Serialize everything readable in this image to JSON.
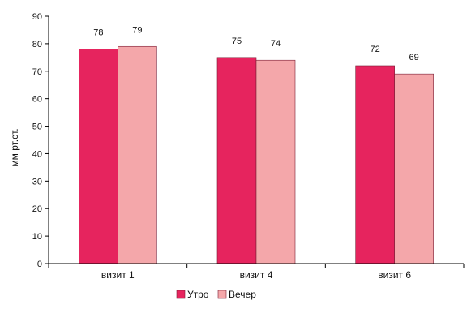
{
  "chart_data": {
    "type": "bar",
    "title": "",
    "xlabel": "",
    "ylabel": "мм рт.ст.",
    "ylim": [
      0,
      90
    ],
    "yticks": [
      0,
      10,
      20,
      30,
      40,
      50,
      60,
      70,
      80,
      90
    ],
    "categories": [
      "визит 1",
      "визит 4",
      "визит 6"
    ],
    "series": [
      {
        "name": "Утро",
        "values": [
          78,
          75,
          72
        ],
        "labels": [
          "78",
          "75",
          "72"
        ],
        "color": "#e6245e"
      },
      {
        "name": "Вечер",
        "values": [
          79,
          74,
          69
        ],
        "labels": [
          "79",
          "74",
          "69"
        ],
        "color": "#f4a7aa"
      }
    ],
    "grid": false,
    "legend_position": "bottom"
  }
}
